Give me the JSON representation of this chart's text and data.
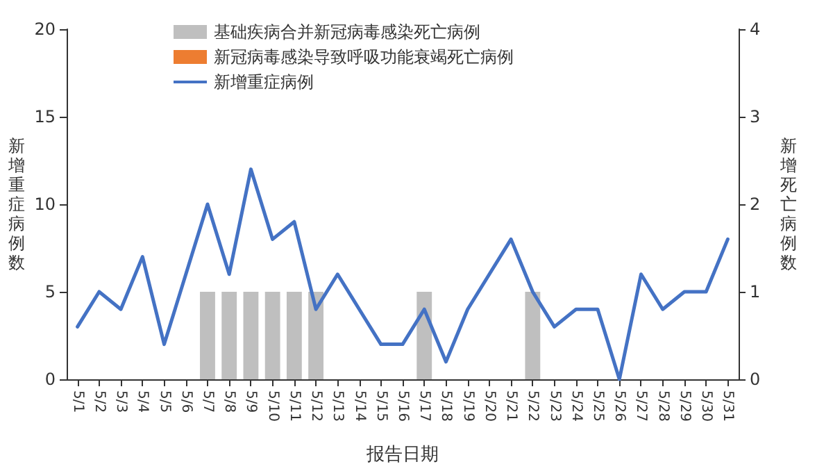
{
  "chart_data": {
    "type": "bar",
    "xlabel": "报告日期",
    "ylabel": "新增重症病例数",
    "y2label": "新增死亡病例数",
    "categories": [
      "5/1",
      "5/2",
      "5/3",
      "5/4",
      "5/5",
      "5/6",
      "5/7",
      "5/8",
      "5/9",
      "5/10",
      "5/11",
      "5/12",
      "5/13",
      "5/14",
      "5/15",
      "5/16",
      "5/17",
      "5/18",
      "5/19",
      "5/20",
      "5/21",
      "5/22",
      "5/23",
      "5/24",
      "5/25",
      "5/26",
      "5/27",
      "5/28",
      "5/29",
      "5/30",
      "5/31"
    ],
    "series": [
      {
        "name": "基础疾病合并新冠病毒感染死亡病例",
        "axis": "y2",
        "color": "#bfbfbf",
        "values": [
          0,
          0,
          0,
          0,
          0,
          0,
          1,
          1,
          1,
          1,
          1,
          1,
          0,
          0,
          0,
          0,
          1,
          0,
          0,
          0,
          0,
          1,
          0,
          0,
          0,
          0,
          0,
          0,
          0,
          0,
          0
        ]
      },
      {
        "name": "新冠病毒感染导致呼吸功能衰竭死亡病例",
        "axis": "y2",
        "color": "#ed7d31",
        "values": [
          0,
          0,
          0,
          0,
          0,
          0,
          0,
          0,
          0,
          0,
          0,
          0,
          0,
          0,
          0,
          0,
          0,
          0,
          0,
          0,
          0,
          0,
          0,
          0,
          0,
          0,
          0,
          0,
          0,
          0,
          0
        ]
      },
      {
        "name": "新增重症病例",
        "type": "line",
        "color": "#4472c4",
        "values": [
          3,
          5,
          4,
          7,
          2,
          6,
          10,
          6,
          12,
          8,
          9,
          4,
          6,
          4,
          2,
          2,
          4,
          1,
          4,
          6,
          8,
          5,
          3,
          4,
          4,
          0,
          6,
          4,
          5,
          5,
          8
        ]
      }
    ],
    "stacked": true,
    "ylim": [
      0,
      20
    ],
    "yticks": [
      0,
      5,
      10,
      15,
      20
    ],
    "y2lim": [
      0,
      4
    ],
    "y2ticks": [
      0,
      1,
      2,
      3,
      4
    ],
    "grid": false,
    "legend": "top",
    "marker": "none",
    "line_style": "solid"
  }
}
